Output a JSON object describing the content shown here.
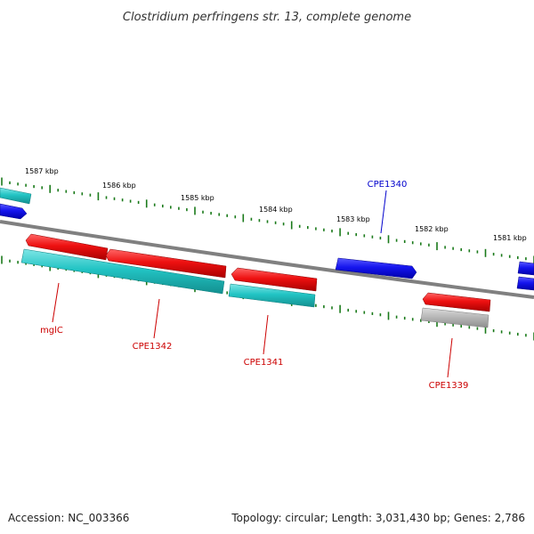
{
  "title": "Clostridium perfringens str. 13, complete genome",
  "footer": {
    "accession": "Accession: NC_003366",
    "summary": "Topology: circular; Length: 3,031,430 bp; Genes: 2,786"
  },
  "colors": {
    "backbone": "#808080",
    "tick": "#1a7a1a",
    "red_gene": "#ee1111",
    "cyan_gene": "#22c4c4",
    "blue_gene": "#1515ee",
    "gray_gene": "#b8b8b8",
    "red_label": "#cc0000",
    "blue_label": "#0000cc"
  },
  "scale_labels": [
    "1587 kbp",
    "1586 kbp",
    "1585 kbp",
    "1584 kbp",
    "1583 kbp",
    "1582 kbp",
    "1581 kbp"
  ],
  "gene_labels": [
    {
      "text": "mglC",
      "color": "red"
    },
    {
      "text": "CPE1342",
      "color": "red"
    },
    {
      "text": "CPE1341",
      "color": "red"
    },
    {
      "text": "CPE1340",
      "color": "blue"
    },
    {
      "text": "CPE1339",
      "color": "red"
    }
  ]
}
